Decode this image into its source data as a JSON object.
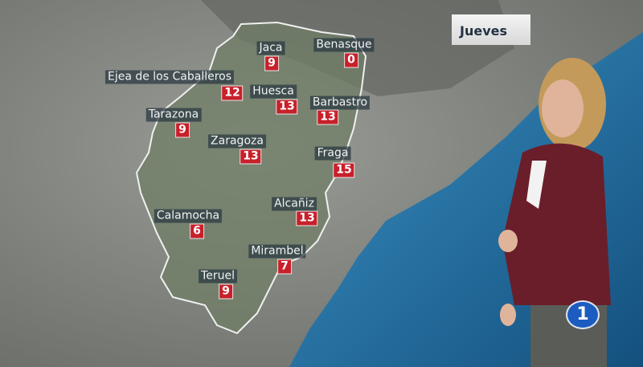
{
  "broadcast": {
    "day_label": "Jueves",
    "channel_logo_text": "1"
  },
  "colors": {
    "sea": "#1f6fa6",
    "temperature_badge": "#c8202a",
    "region_outline": "#f0f0f0"
  },
  "cities": [
    {
      "name": "Jaca",
      "temp": "9"
    },
    {
      "name": "Benasque",
      "temp": "0"
    },
    {
      "name": "Ejea de los Caballeros",
      "temp": "12"
    },
    {
      "name": "Huesca",
      "temp": "13"
    },
    {
      "name": "Barbastro",
      "temp": "13"
    },
    {
      "name": "Tarazona",
      "temp": "9"
    },
    {
      "name": "Zaragoza",
      "temp": "13"
    },
    {
      "name": "Fraga",
      "temp": "15"
    },
    {
      "name": "Calamocha",
      "temp": "6"
    },
    {
      "name": "Alcañiz",
      "temp": "13"
    },
    {
      "name": "Mirambel",
      "temp": "7"
    },
    {
      "name": "Teruel",
      "temp": "9"
    }
  ]
}
